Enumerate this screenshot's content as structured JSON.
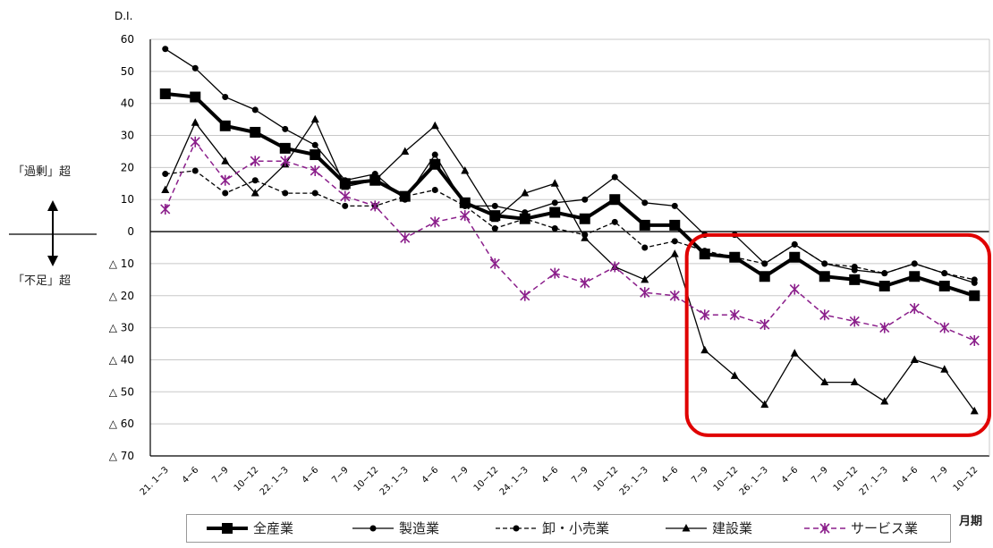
{
  "chart_data": {
    "type": "line",
    "ylabel": "D.I.",
    "xlabel": "月期",
    "ylim": [
      -70,
      60
    ],
    "yticks": [
      60,
      50,
      40,
      30,
      20,
      10,
      0,
      -10,
      -20,
      -30,
      -40,
      -50,
      -60,
      -70
    ],
    "ytick_labels": [
      "60",
      "50",
      "40",
      "30",
      "20",
      "10",
      "0",
      "△ 10",
      "△ 20",
      "△ 30",
      "△ 40",
      "△ 50",
      "△ 60",
      "△ 70"
    ],
    "categories": [
      "21. 1−3",
      "4−6",
      "7−9",
      "10−12",
      "22. 1−3",
      "4−6",
      "7−9",
      "10−12",
      "23. 1−3",
      "4−6",
      "7−9",
      "10−12",
      "24. 1−3",
      "4−6",
      "7−9",
      "10−12",
      "25. 1−3",
      "4−6",
      "7−9",
      "10−12",
      "26. 1−3",
      "4−6",
      "7−9",
      "10−12",
      "27. 1−3",
      "4−6",
      "7−9",
      "10−12"
    ],
    "grid": true,
    "legend_position": "bottom",
    "series": [
      {
        "name": "全産業",
        "color": "#000000",
        "style": "bold-square",
        "values": [
          43,
          42,
          33,
          31,
          26,
          24,
          15,
          16,
          11,
          21,
          9,
          5,
          4,
          6,
          4,
          10,
          2,
          2,
          -7,
          -8,
          -14,
          -8,
          -14,
          -15,
          -17,
          -14,
          -17,
          -20
        ]
      },
      {
        "name": "製造業",
        "color": "#000000",
        "style": "circle",
        "values": [
          57,
          51,
          42,
          38,
          32,
          27,
          16,
          18,
          10,
          24,
          8,
          8,
          6,
          9,
          10,
          17,
          9,
          8,
          -1,
          -1,
          -10,
          -4,
          -10,
          -12,
          -13,
          -10,
          -13,
          -16
        ]
      },
      {
        "name": "卸・小売業",
        "color": "#000000",
        "style": "dashed-circle",
        "values": [
          18,
          19,
          12,
          16,
          12,
          12,
          8,
          8,
          11,
          13,
          8,
          1,
          4,
          1,
          -1,
          3,
          -5,
          -3,
          -6,
          -8,
          -10,
          -4,
          -10,
          -11,
          -13,
          -10,
          -13,
          -15
        ]
      },
      {
        "name": "建設業",
        "color": "#000000",
        "style": "triangle",
        "values": [
          13,
          34,
          22,
          12,
          21,
          35,
          14,
          16,
          25,
          33,
          19,
          4,
          12,
          15,
          -2,
          -11,
          -15,
          -7,
          -37,
          -45,
          -54,
          -38,
          -47,
          -47,
          -53,
          -40,
          -43,
          -56
        ]
      },
      {
        "name": "サービス業",
        "color": "#8b1f8b",
        "style": "dashed-asterisk",
        "values": [
          7,
          28,
          16,
          22,
          22,
          19,
          11,
          8,
          -2,
          3,
          5,
          -10,
          -20,
          -13,
          -16,
          -11,
          -19,
          -20,
          -26,
          -26,
          -29,
          -18,
          -26,
          -28,
          -30,
          -24,
          -30,
          -34
        ]
      }
    ],
    "annotations": {
      "upper": "「過剰」超",
      "lower": "「不足」超"
    },
    "highlight": {
      "from_category": "7−9",
      "from_index": 18,
      "to_index": 27,
      "color": "#e00000"
    }
  }
}
